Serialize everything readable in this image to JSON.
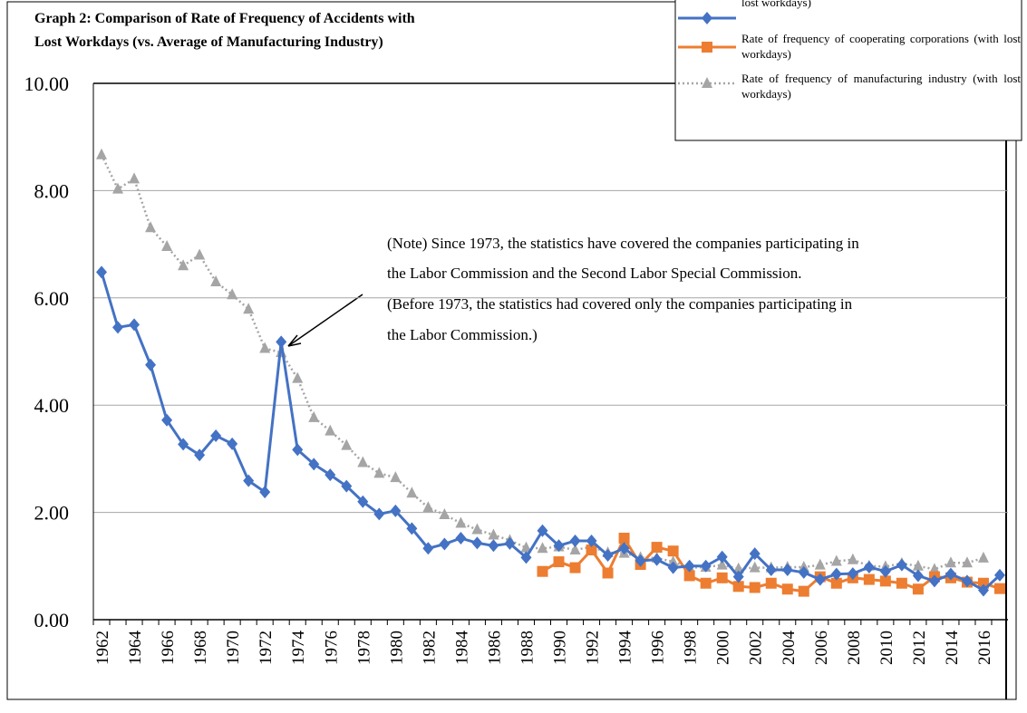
{
  "chart_data": {
    "type": "line",
    "title": [
      "Graph 2: Comparison of Rate of Frequency of Accidents with",
      "Lost Workdays  (vs. Average of Manufacturing Industry)"
    ],
    "note": [
      "(Note)  Since 1973, the statistics have covered the companies participating in",
      "the Labor Commission and the Second Labor Special Commission.",
      "(Before 1973, the statistics had covered only the companies participating in",
      "the Labor Commission.)"
    ],
    "categories": [
      "1962",
      null,
      "1964",
      null,
      "1966",
      null,
      "1968",
      null,
      "1970",
      null,
      "1972",
      null,
      "1974",
      null,
      "1976",
      null,
      "1978",
      null,
      "1980",
      null,
      "1982",
      null,
      "1984",
      null,
      "1986",
      null,
      "1988",
      null,
      "1990",
      null,
      "1992",
      null,
      "1994",
      null,
      "1996",
      null,
      "1998",
      null,
      "2000",
      null,
      "2002",
      null,
      "2004",
      null,
      "2006",
      null,
      "2008",
      null,
      "2010",
      null,
      "2012",
      null,
      "2014",
      null,
      "2016",
      null
    ],
    "series": [
      {
        "name": "lost workdays)",
        "color": "#4472c4",
        "marker": "diamond",
        "values": [
          6.48,
          5.45,
          5.5,
          4.75,
          3.72,
          3.27,
          3.07,
          3.43,
          3.28,
          2.59,
          2.38,
          5.18,
          3.17,
          2.9,
          2.7,
          2.49,
          2.2,
          1.97,
          2.03,
          1.7,
          1.33,
          1.41,
          1.52,
          1.43,
          1.38,
          1.42,
          1.16,
          1.66,
          1.38,
          1.47,
          1.47,
          1.2,
          1.33,
          1.1,
          1.12,
          0.97,
          1.0,
          1.0,
          1.17,
          0.8,
          1.23,
          0.93,
          0.93,
          0.88,
          0.75,
          0.85,
          0.86,
          0.98,
          0.9,
          1.02,
          0.82,
          0.72,
          0.85,
          0.72,
          0.55,
          0.83
        ]
      },
      {
        "name": "Rate of frequency of cooperating corporations (with lost workdays)",
        "color": "#ed7d31",
        "marker": "square",
        "values": [
          null,
          null,
          null,
          null,
          null,
          null,
          null,
          null,
          null,
          null,
          null,
          null,
          null,
          null,
          null,
          null,
          null,
          null,
          null,
          null,
          null,
          null,
          null,
          null,
          null,
          null,
          null,
          0.9,
          1.08,
          0.97,
          1.3,
          0.87,
          1.52,
          1.03,
          1.35,
          1.28,
          0.82,
          0.68,
          0.78,
          0.62,
          0.6,
          0.68,
          0.57,
          0.53,
          0.8,
          0.68,
          0.78,
          0.75,
          0.72,
          0.68,
          0.57,
          0.8,
          0.78,
          0.7,
          0.68,
          0.58
        ]
      },
      {
        "name": "Rate of frequency of manufacturing industry (with lost workdays)",
        "color": "#a5a5a5",
        "marker": "triangle",
        "dash": "dotted",
        "values": [
          8.67,
          8.03,
          8.22,
          7.31,
          6.96,
          6.6,
          6.8,
          6.3,
          6.06,
          5.79,
          5.06,
          4.98,
          4.5,
          3.77,
          3.52,
          3.25,
          2.93,
          2.73,
          2.65,
          2.36,
          2.09,
          1.96,
          1.8,
          1.68,
          1.58,
          1.48,
          1.34,
          1.33,
          1.36,
          1.3,
          1.36,
          1.25,
          1.24,
          1.16,
          1.15,
          1.08,
          0.97,
          0.98,
          1.02,
          0.95,
          0.97,
          0.97,
          0.98,
          0.98,
          1.02,
          1.09,
          1.12,
          1.0,
          0.99,
          1.05,
          1.0,
          0.94,
          1.06,
          1.06,
          1.15,
          null
        ]
      }
    ],
    "ylim": [
      0,
      10
    ],
    "yticks": [
      {
        "value": 0,
        "label": "0.00"
      },
      {
        "value": 2,
        "label": "2.00"
      },
      {
        "value": 4,
        "label": "4.00"
      },
      {
        "value": 6,
        "label": "6.00"
      },
      {
        "value": 8,
        "label": "8.00"
      },
      {
        "value": 10,
        "label": "10.00"
      }
    ],
    "grid": true,
    "legend": "top-right"
  }
}
